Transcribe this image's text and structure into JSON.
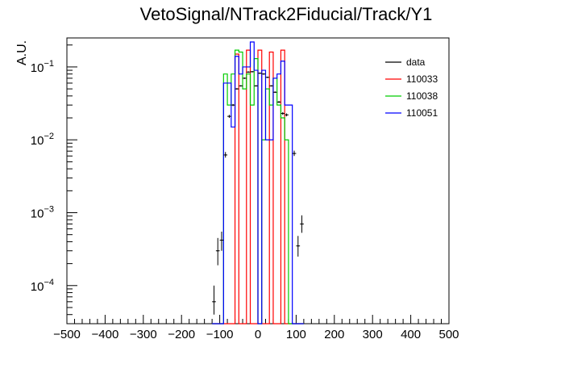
{
  "chart_data": {
    "type": "step-histogram",
    "title": "VetoSignal/NTrack2Fiducial/Track/Y1",
    "xlabel": "",
    "ylabel": "A.U.",
    "xlim": [
      -500,
      500
    ],
    "ylim": [
      3e-05,
      0.25
    ],
    "y_scale": "log",
    "x_ticks": [
      -500,
      -400,
      -300,
      -200,
      -100,
      0,
      100,
      200,
      300,
      400,
      500
    ],
    "x_tick_labels": [
      "−500",
      "−400",
      "−300",
      "−200",
      "−100",
      "0",
      "100",
      "200",
      "300",
      "400",
      "500"
    ],
    "y_ticks": [
      0.0001,
      0.001,
      0.01,
      0.1
    ],
    "y_tick_labels": [
      {
        "base": "10",
        "exp": "−4"
      },
      {
        "base": "10",
        "exp": "−3"
      },
      {
        "base": "10",
        "exp": "−2"
      },
      {
        "base": "10",
        "exp": "−1"
      }
    ],
    "grid": false,
    "legend_position": "top-right",
    "bin_edges": [
      -120,
      -110,
      -100,
      -90,
      -80,
      -70,
      -60,
      -50,
      -40,
      -30,
      -20,
      -10,
      0,
      10,
      20,
      30,
      40,
      50,
      60,
      70,
      80,
      90,
      100,
      110,
      120
    ],
    "data": {
      "name": "data",
      "color": "#000000",
      "points": [
        {
          "x": -115,
          "y": 6e-05,
          "err": [
            4e-05,
            0.0001
          ]
        },
        {
          "x": -105,
          "y": 0.0003,
          "err": [
            0.00019,
            0.00045
          ]
        },
        {
          "x": -95,
          "y": 0.00042,
          "err": [
            0.0003,
            0.00055
          ]
        },
        {
          "x": -85,
          "y": 0.0062,
          "err": [
            0.0057,
            0.0068
          ]
        },
        {
          "x": -75,
          "y": 0.021,
          "err": [
            0.02,
            0.022
          ]
        },
        {
          "x": -65,
          "y": 0.03,
          "err": [
            0.029,
            0.031
          ]
        },
        {
          "x": -55,
          "y": 0.05,
          "err": [
            0.049,
            0.051
          ]
        },
        {
          "x": -45,
          "y": 0.055,
          "err": [
            0.054,
            0.056
          ]
        },
        {
          "x": -35,
          "y": 0.07,
          "err": [
            0.069,
            0.071
          ]
        },
        {
          "x": -25,
          "y": 0.085,
          "err": [
            0.084,
            0.086
          ]
        },
        {
          "x": -15,
          "y": 0.086,
          "err": [
            0.085,
            0.087
          ]
        },
        {
          "x": -5,
          "y": 0.055,
          "err": [
            0.054,
            0.056
          ]
        },
        {
          "x": 5,
          "y": 0.082,
          "err": [
            0.081,
            0.083
          ]
        },
        {
          "x": 15,
          "y": 0.08,
          "err": [
            0.079,
            0.081
          ]
        },
        {
          "x": 25,
          "y": 0.072,
          "err": [
            0.071,
            0.073
          ]
        },
        {
          "x": 35,
          "y": 0.055,
          "err": [
            0.054,
            0.056
          ]
        },
        {
          "x": 45,
          "y": 0.045,
          "err": [
            0.044,
            0.046
          ]
        },
        {
          "x": 55,
          "y": 0.033,
          "err": [
            0.032,
            0.034
          ]
        },
        {
          "x": 65,
          "y": 0.023,
          "err": [
            0.022,
            0.024
          ]
        },
        {
          "x": 75,
          "y": 0.022,
          "err": [
            0.021,
            0.023
          ]
        },
        {
          "x": 95,
          "y": 0.0065,
          "err": [
            0.006,
            0.0071
          ]
        },
        {
          "x": 105,
          "y": 0.00035,
          "err": [
            0.00025,
            0.00048
          ]
        },
        {
          "x": 115,
          "y": 0.0007,
          "err": [
            0.00053,
            0.00092
          ]
        }
      ]
    },
    "series": [
      {
        "name": "110033",
        "color": "#ff0000",
        "values": [
          0,
          0,
          0,
          0,
          0,
          0,
          0.15,
          0,
          0,
          0.17,
          0,
          0,
          0.17,
          0,
          0,
          0.16,
          0,
          0,
          0.17,
          0,
          0,
          0,
          0,
          0
        ]
      },
      {
        "name": "110038",
        "color": "#00cc00",
        "values": [
          0,
          0,
          0,
          0.08,
          0.03,
          0.08,
          0.17,
          0.16,
          0.05,
          0.08,
          0.03,
          0.13,
          0,
          0.01,
          0.05,
          0.03,
          0.07,
          0.03,
          0.02,
          0.01,
          0,
          0,
          0,
          0
        ]
      },
      {
        "name": "110051",
        "color": "#0000ff",
        "values": [
          0,
          0,
          0,
          0.06,
          0.06,
          0.015,
          0.14,
          0.08,
          0.1,
          0.1,
          0.22,
          0.09,
          0,
          0.09,
          0.01,
          0.01,
          0.07,
          0.08,
          0.12,
          0.03,
          0.03,
          0,
          0,
          0
        ]
      }
    ]
  }
}
